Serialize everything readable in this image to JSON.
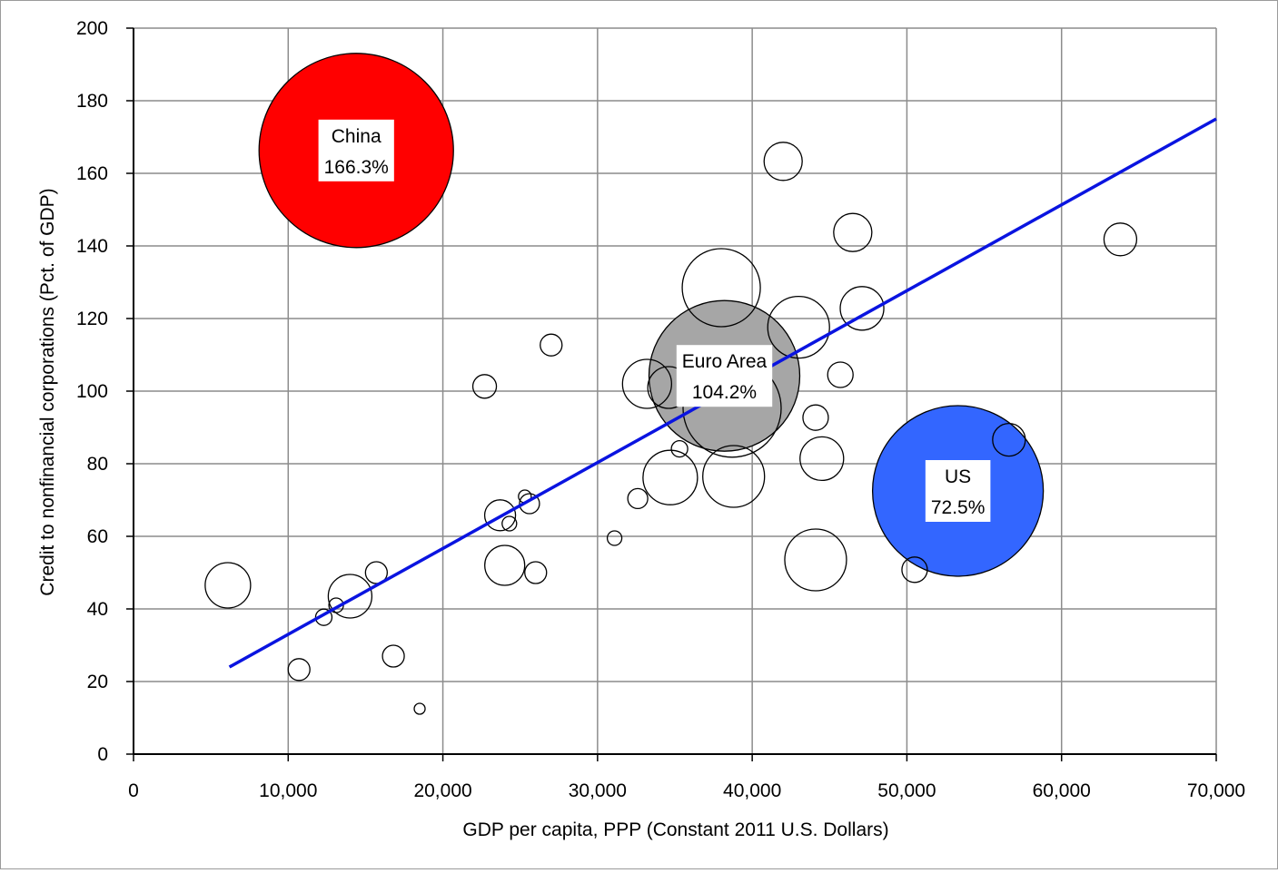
{
  "chart_data": {
    "type": "bubble",
    "xlabel": "GDP per capita, PPP (Constant 2011 U.S. Dollars)",
    "ylabel": "Credit to nonfinancial corporations (Pct. of GDP)",
    "xlim": [
      0,
      70000
    ],
    "ylim": [
      0,
      200
    ],
    "xticks": [
      0,
      10000,
      20000,
      30000,
      40000,
      50000,
      60000,
      70000
    ],
    "xtick_labels": [
      "0",
      "10,000",
      "20,000",
      "30,000",
      "40,000",
      "50,000",
      "60,000",
      "70,000"
    ],
    "yticks": [
      0,
      20,
      40,
      60,
      80,
      100,
      120,
      140,
      160,
      180,
      200
    ],
    "ytick_labels": [
      "0",
      "20",
      "40",
      "60",
      "80",
      "100",
      "120",
      "140",
      "160",
      "180",
      "200"
    ],
    "grid": true,
    "trendline": {
      "x": [
        6200,
        70000
      ],
      "y": [
        24,
        175
      ],
      "color": "#0a14e0"
    },
    "highlighted": [
      {
        "x": 14400,
        "y": 166.3,
        "r": 107,
        "color": "#ff0000",
        "label_line1": "China",
        "label_line2": "166.3%"
      },
      {
        "x": 38200,
        "y": 104.2,
        "r": 83,
        "color": "#a6a6a6",
        "label_line1": "Euro Area",
        "label_line2": "104.2%"
      },
      {
        "x": 53300,
        "y": 72.5,
        "r": 94,
        "color": "#3366ff",
        "label_line1": "US",
        "label_line2": "72.5%"
      }
    ],
    "points": [
      {
        "x": 6100,
        "y": 46.5,
        "r": 25
      },
      {
        "x": 10700,
        "y": 23.3,
        "r": 12
      },
      {
        "x": 12300,
        "y": 37.7,
        "r": 9
      },
      {
        "x": 13100,
        "y": 41,
        "r": 8
      },
      {
        "x": 14000,
        "y": 43.5,
        "r": 24
      },
      {
        "x": 15700,
        "y": 50,
        "r": 12
      },
      {
        "x": 16800,
        "y": 27,
        "r": 12
      },
      {
        "x": 18500,
        "y": 12.5,
        "r": 6
      },
      {
        "x": 22700,
        "y": 101.3,
        "r": 13
      },
      {
        "x": 23700,
        "y": 65.8,
        "r": 17
      },
      {
        "x": 24000,
        "y": 52,
        "r": 22
      },
      {
        "x": 24300,
        "y": 63.5,
        "r": 8
      },
      {
        "x": 25300,
        "y": 71,
        "r": 7
      },
      {
        "x": 25600,
        "y": 69,
        "r": 11
      },
      {
        "x": 26000,
        "y": 50,
        "r": 12
      },
      {
        "x": 27000,
        "y": 112.7,
        "r": 12
      },
      {
        "x": 31100,
        "y": 59.5,
        "r": 8
      },
      {
        "x": 32600,
        "y": 70.4,
        "r": 11
      },
      {
        "x": 33200,
        "y": 102,
        "r": 27
      },
      {
        "x": 34600,
        "y": 101,
        "r": 23
      },
      {
        "x": 34700,
        "y": 76.2,
        "r": 30
      },
      {
        "x": 35300,
        "y": 84.1,
        "r": 9
      },
      {
        "x": 38000,
        "y": 128.5,
        "r": 43
      },
      {
        "x": 38700,
        "y": 95.3,
        "r": 54
      },
      {
        "x": 38800,
        "y": 76.5,
        "r": 34
      },
      {
        "x": 42000,
        "y": 163.3,
        "r": 21
      },
      {
        "x": 43000,
        "y": 117.6,
        "r": 34
      },
      {
        "x": 44100,
        "y": 53.5,
        "r": 34
      },
      {
        "x": 44100,
        "y": 92.7,
        "r": 14
      },
      {
        "x": 44500,
        "y": 81.4,
        "r": 24
      },
      {
        "x": 45700,
        "y": 104.5,
        "r": 14
      },
      {
        "x": 46500,
        "y": 143.7,
        "r": 21
      },
      {
        "x": 47100,
        "y": 122.8,
        "r": 24
      },
      {
        "x": 50500,
        "y": 50.8,
        "r": 14
      },
      {
        "x": 56600,
        "y": 86.6,
        "r": 18
      },
      {
        "x": 63800,
        "y": 141.8,
        "r": 18
      }
    ]
  }
}
